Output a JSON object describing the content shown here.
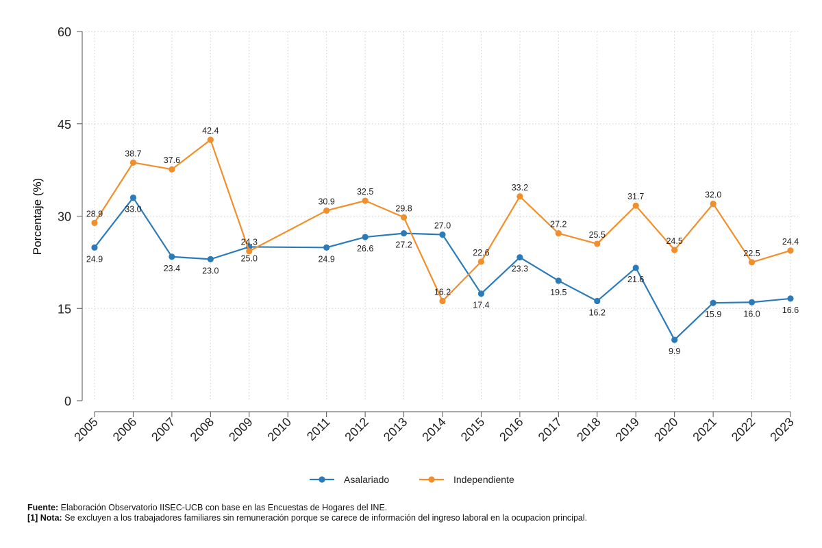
{
  "chart_data": {
    "type": "line",
    "title": "",
    "ylabel": "Porcentaje (%)",
    "xlabel": "",
    "ylim": [
      0,
      60
    ],
    "yticks": [
      0,
      15,
      30,
      45,
      60
    ],
    "grid": true,
    "categories": [
      "2005",
      "2006",
      "2007",
      "2008",
      "2009",
      "2010",
      "2011",
      "2012",
      "2013",
      "2014",
      "2015",
      "2016",
      "2017",
      "2018",
      "2019",
      "2020",
      "2021",
      "2022",
      "2023"
    ],
    "series": [
      {
        "name": "Asalariado",
        "color": "#2b7bb9",
        "values": [
          24.9,
          33.0,
          23.4,
          23.0,
          25.0,
          null,
          24.9,
          26.6,
          27.2,
          27.0,
          17.4,
          23.3,
          19.5,
          16.2,
          21.6,
          9.9,
          15.9,
          16.0,
          16.6
        ]
      },
      {
        "name": "Independiente",
        "color": "#f28e2b",
        "values": [
          28.9,
          38.7,
          37.6,
          42.4,
          24.3,
          null,
          30.9,
          32.5,
          29.8,
          16.2,
          22.6,
          33.2,
          27.2,
          25.5,
          31.7,
          24.5,
          32.0,
          22.5,
          24.4
        ]
      }
    ],
    "legend_position": "bottom"
  },
  "footer": {
    "source_label": "Fuente:",
    "source_text": "Elaboración Observatorio IISEC-UCB con base en las Encuestas de Hogares del INE.",
    "note_label": "[1] Nota:",
    "note_text": "Se excluyen a los trabajadores familiares sin remuneración porque se carece de información del ingreso laboral en la ocupacion principal."
  }
}
